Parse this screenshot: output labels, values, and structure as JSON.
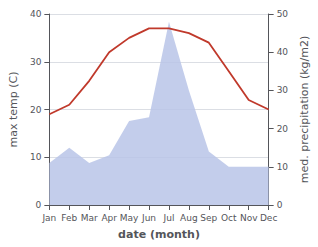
{
  "chart_data": {
    "type": "line",
    "xlabel": "date (month)",
    "ylabel": "max temp (C)",
    "y2label": "med. precipitation (kg/m2)",
    "categories": [
      "Jan",
      "Feb",
      "Mar",
      "Apr",
      "May",
      "Jun",
      "Jul",
      "Aug",
      "Sep",
      "Oct",
      "Nov",
      "Dec"
    ],
    "series": [
      {
        "type": "line",
        "color": "#c0392b",
        "axis": "y",
        "values": [
          19,
          21,
          26,
          32,
          35,
          37,
          37,
          36,
          34,
          28,
          22,
          20
        ]
      },
      {
        "type": "area",
        "color": "#b8c4e8",
        "axis": "y2",
        "values": [
          11,
          15,
          11,
          13,
          22,
          23,
          48,
          30,
          14,
          10,
          10,
          10
        ]
      }
    ],
    "ylim": [
      0,
      40
    ],
    "yticks": [
      0,
      10,
      20,
      30,
      40
    ],
    "y2lim": [
      0,
      50
    ],
    "y2ticks": [
      0,
      10,
      20,
      30,
      40,
      50
    ],
    "grid": true
  }
}
